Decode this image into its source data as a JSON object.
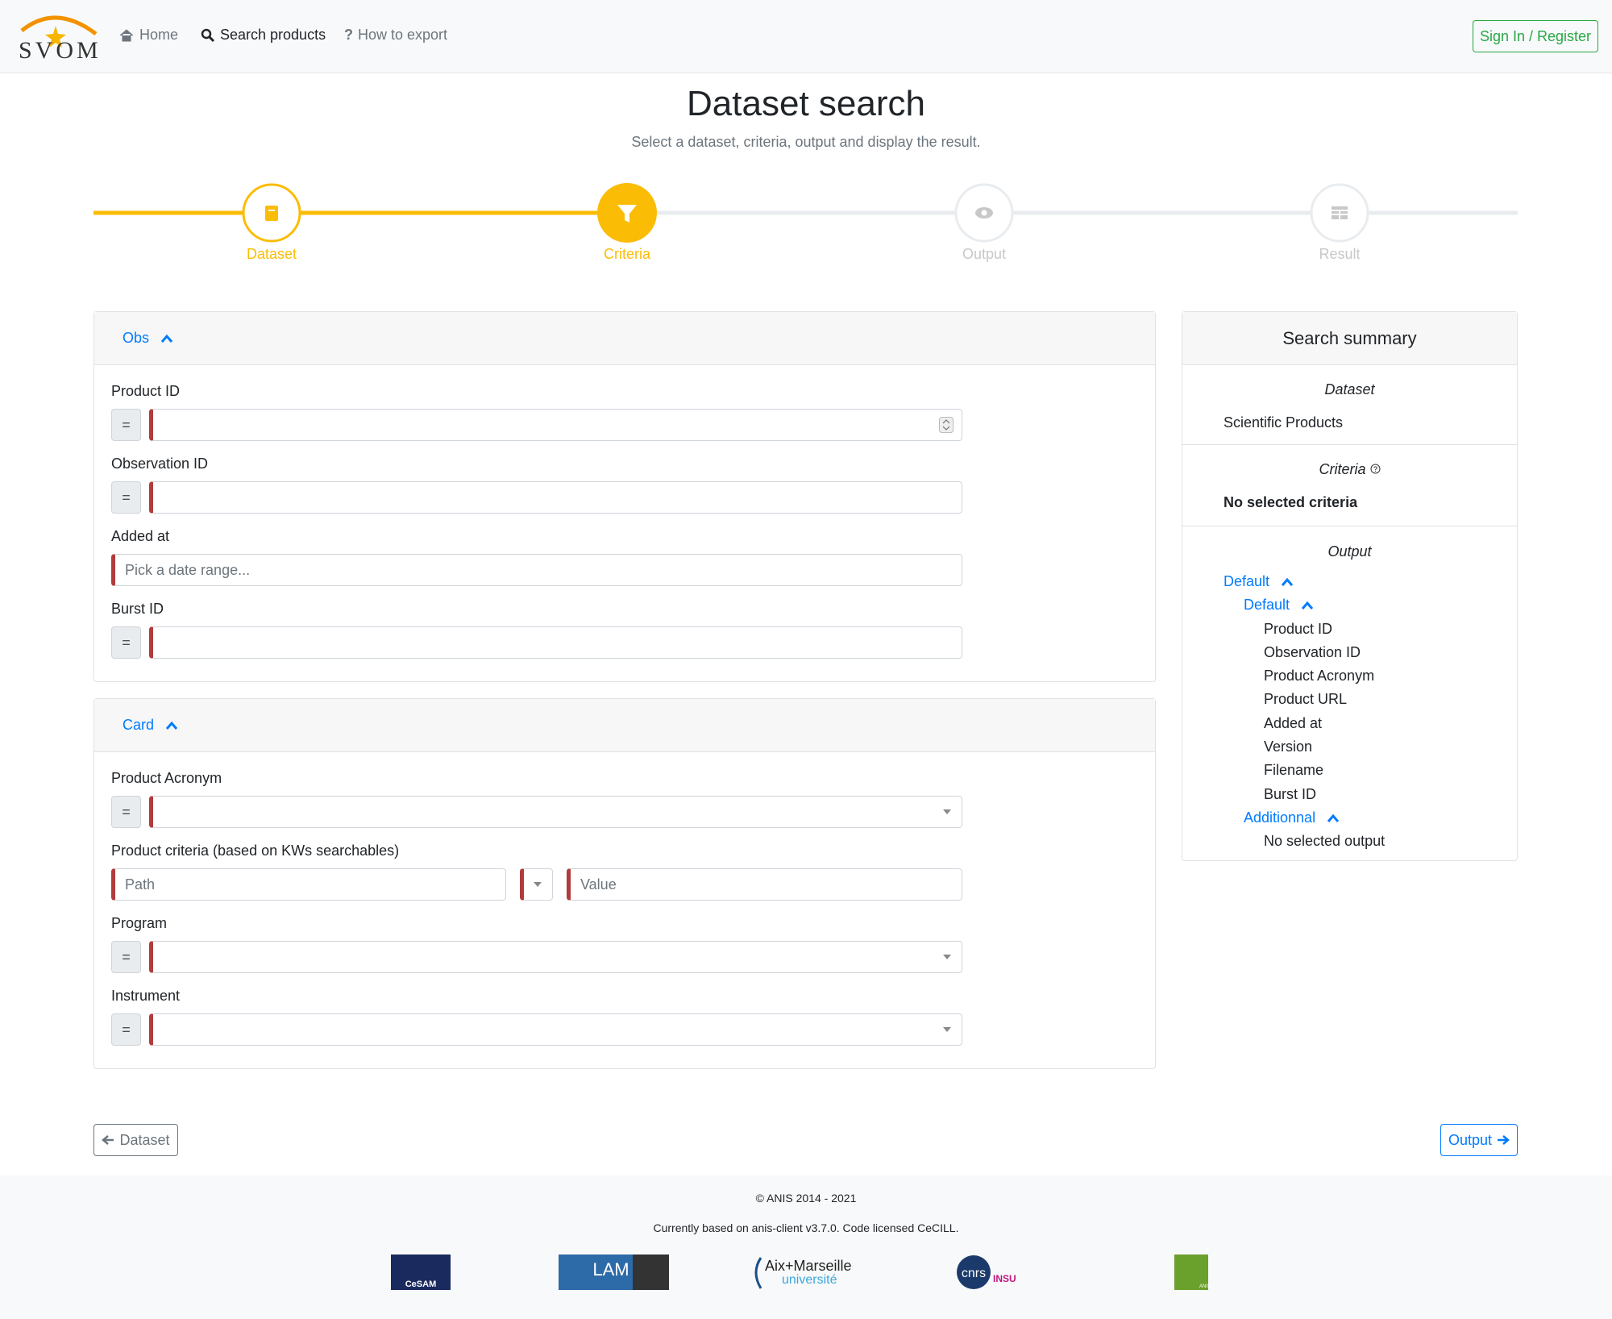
{
  "nav": {
    "logo": "SVOM",
    "links": [
      "Home",
      "Search products",
      "How to export"
    ],
    "sign_in": "Sign In / Register"
  },
  "header": {
    "title": "Dataset search",
    "subtitle": "Select a dataset, criteria, output and display the result."
  },
  "steps": [
    "Dataset",
    "Criteria",
    "Output",
    "Result"
  ],
  "operator": "=",
  "sections": [
    {
      "title": "Obs",
      "fields": [
        {
          "label": "Product ID",
          "kind": "number"
        },
        {
          "label": "Observation ID",
          "kind": "eq"
        },
        {
          "label": "Added at",
          "kind": "date",
          "placeholder": "Pick a date range..."
        },
        {
          "label": "Burst ID",
          "kind": "eq"
        }
      ]
    },
    {
      "title": "Card",
      "fields": [
        {
          "label": "Product Acronym",
          "kind": "select"
        },
        {
          "label": "Product criteria (based on KWs searchables)",
          "kind": "kw",
          "placeholder": "Path",
          "placeholder2": "Value"
        },
        {
          "label": "Program",
          "kind": "select"
        },
        {
          "label": "Instrument",
          "kind": "select"
        }
      ]
    }
  ],
  "summary": {
    "title": "Search summary",
    "dataset_heading": "Dataset",
    "dataset": "Scientific Products",
    "criteria_heading": "Criteria",
    "criteria": "No selected criteria",
    "output_heading": "Output",
    "group": "Default",
    "subgroup": "Default",
    "outputs": [
      "Product ID",
      "Observation ID",
      "Product Acronym",
      "Product URL",
      "Added at",
      "Version",
      "Filename",
      "Burst ID"
    ],
    "additional": "Additionnal",
    "additional_empty": "No selected output"
  },
  "buttons": {
    "back": "Dataset",
    "next": "Output"
  },
  "footer": {
    "copyright": "© ANIS 2014 - 2021",
    "based_on": "Currently based on anis-client v3.7.0. Code licensed CeCILL.",
    "logos": [
      "CeSAM",
      "LAM",
      "Aix+Marseille",
      "université",
      "cnrs",
      "INSU",
      "ANIS"
    ]
  }
}
